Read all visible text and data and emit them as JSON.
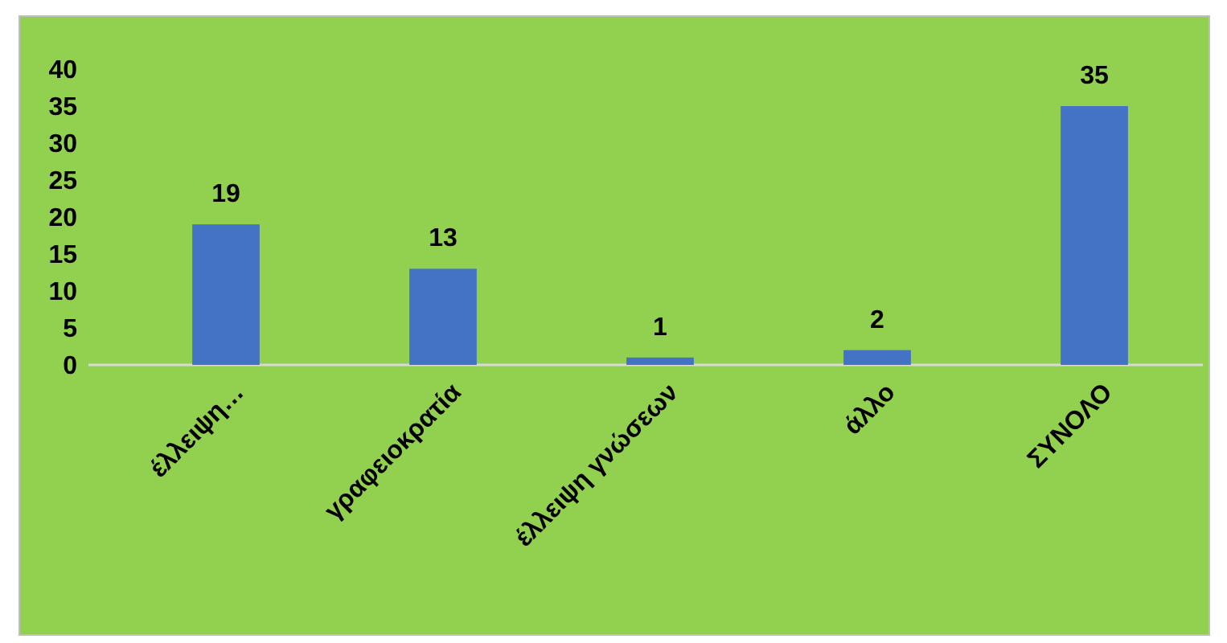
{
  "chart_data": {
    "type": "bar",
    "categories": [
      "έλλειψη…",
      "γραφειοκρατία",
      "έλλειψη γνώσεων",
      "άλλο",
      "ΣΥΝΟΛΟ"
    ],
    "values": [
      19,
      13,
      1,
      2,
      35
    ],
    "color": "#4472c4",
    "ylim": [
      0,
      40
    ],
    "yticks": [
      0,
      5,
      10,
      15,
      20,
      25,
      30,
      35,
      40
    ],
    "grid": false,
    "data_labels": true
  }
}
